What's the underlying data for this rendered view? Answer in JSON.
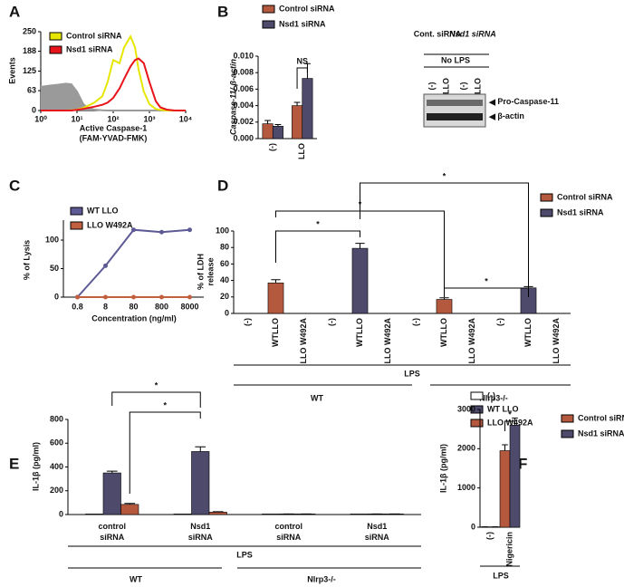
{
  "chart_data": [
    {
      "label": "A",
      "type": "line",
      "xlabel": [
        "Active Caspase-1",
        "(FAM-YVAD-FMK)"
      ],
      "ylabel": "Events",
      "x": [
        1,
        2,
        3,
        5,
        7,
        10,
        15,
        20,
        30,
        50,
        70,
        100,
        150,
        200,
        300,
        400,
        500,
        700,
        1000,
        1500,
        2000,
        3000,
        5000,
        10000
      ],
      "xscale": "log",
      "xlim": [
        1,
        10000
      ],
      "xticks": [
        {
          "value": 1,
          "label": "10⁰"
        },
        {
          "value": 10,
          "label": "10¹"
        },
        {
          "value": 100,
          "label": "10²"
        },
        {
          "value": 1000,
          "label": "10³"
        },
        {
          "value": 10000,
          "label": "10⁴"
        }
      ],
      "ylim": [
        0,
        250
      ],
      "yticks": [
        0,
        63,
        125,
        188,
        250
      ],
      "series": [
        {
          "color": "#9a9a9a",
          "area": true,
          "values": [
            75,
            80,
            82,
            85,
            83,
            60,
            20,
            8,
            3,
            1,
            0,
            0,
            0,
            0,
            0,
            0,
            0,
            0,
            0,
            0,
            0,
            0,
            0,
            0
          ]
        },
        {
          "name": "Control siRNA",
          "color": "#e6e600",
          "values": [
            0,
            0,
            0,
            0,
            1,
            3,
            8,
            15,
            25,
            45,
            90,
            160,
            150,
            200,
            235,
            200,
            130,
            60,
            20,
            5,
            2,
            0,
            0,
            0
          ]
        },
        {
          "name": "Nsd1 siRNA",
          "color": "#e8141c",
          "values": [
            0,
            0,
            0,
            0,
            0,
            2,
            5,
            8,
            12,
            18,
            25,
            40,
            70,
            100,
            140,
            160,
            165,
            150,
            90,
            30,
            10,
            3,
            0,
            0
          ]
        }
      ]
    },
    {
      "label": "B",
      "type": "bar",
      "ylabel": "Caspase-11/ β-actin",
      "categories": [
        "(-)",
        "LLO"
      ],
      "ylim": [
        0,
        0.01
      ],
      "yticks": [
        {
          "value": 0,
          "label": "0.000"
        },
        {
          "value": 0.002,
          "label": "0.002"
        },
        {
          "value": 0.004,
          "label": "0.004"
        },
        {
          "value": 0.006,
          "label": "0.006"
        },
        {
          "value": 0.008,
          "label": "0.008"
        },
        {
          "value": 0.01,
          "label": "0.010"
        }
      ],
      "series": [
        {
          "name": "Control siRNA",
          "color": "#b5593e",
          "values": [
            0.0018,
            0.004
          ],
          "errors": [
            0.0004,
            0.0004
          ]
        },
        {
          "name": "Nsd1 siRNA",
          "color": "#4d4a6b",
          "values": [
            0.0015,
            0.0073
          ],
          "errors": [
            0.0002,
            0.0018
          ]
        }
      ],
      "annotations": [
        "NS"
      ],
      "blot": {
        "groups": [
          "Cont. siRNA",
          "Nsd1 siRNA"
        ],
        "condition": "No LPS",
        "lanes": [
          "(-)",
          "LLO",
          "(-)",
          "LLO"
        ],
        "bands": [
          "Pro-Caspase-11",
          "β-actin"
        ]
      }
    },
    {
      "label": "C",
      "type": "line",
      "xlabel": "Concentration (ng/ml)",
      "ylabel": "% of Lysis",
      "categories": [
        "0.8",
        "8",
        "80",
        "800",
        "8000"
      ],
      "ylim": [
        0,
        135
      ],
      "yticks": [
        0,
        50,
        100
      ],
      "series": [
        {
          "name": "WT LLO",
          "color": "#5e5a96",
          "values": [
            0,
            55,
            118,
            114,
            118
          ]
        },
        {
          "name": "LLO W492A",
          "color": "#c0603f",
          "values": [
            0,
            0,
            0,
            0,
            0
          ]
        }
      ]
    },
    {
      "label": "D",
      "type": "bar",
      "ylabel": [
        "% of LDH",
        "release"
      ],
      "categories": [
        "(-)",
        "WTLLO",
        "LLO W492A",
        "(-)",
        "WTLLO",
        "LLO W492A",
        "(-)",
        "WTLLO",
        "LLO W492A",
        "(-)",
        "WTLLO",
        "LLO W492A"
      ],
      "ylim": [
        0,
        100
      ],
      "yticks": [
        0,
        20,
        40,
        60,
        80,
        100
      ],
      "series": [
        {
          "name": "Control siRNA",
          "color": "#b5593e",
          "values": [
            0,
            37,
            0,
            null,
            null,
            null,
            0,
            17,
            0,
            null,
            null,
            null
          ],
          "errors": [
            0,
            4,
            0,
            null,
            null,
            null,
            0,
            2,
            0,
            null,
            null,
            null
          ]
        },
        {
          "name": "Nsd1 siRNA",
          "color": "#4d4a6b",
          "values": [
            null,
            null,
            null,
            0,
            79,
            0,
            null,
            null,
            null,
            0,
            31,
            0
          ],
          "errors": [
            null,
            null,
            null,
            0,
            6,
            0,
            null,
            null,
            null,
            0,
            1.5,
            0
          ]
        }
      ],
      "groups": [
        "LPS",
        "WT",
        "Nlrp3-/-"
      ],
      "annotations": [
        "*",
        "*",
        "*",
        "*"
      ]
    },
    {
      "label": "E",
      "type": "bar",
      "ylabel": "IL-1β (pg/ml)",
      "categories": [
        "control siRNA",
        "Nsd1 siRNA",
        "control siRNA",
        "Nsd1 siRNA"
      ],
      "ylim": [
        0,
        800
      ],
      "yticks": [
        0,
        200,
        400,
        600,
        800
      ],
      "series": [
        {
          "name": "(-)",
          "color": "#ffffff",
          "values": [
            5,
            5,
            5,
            5
          ]
        },
        {
          "name": "WT LLO",
          "color": "#4d4a6b",
          "values": [
            350,
            530,
            5,
            5
          ],
          "errors": [
            15,
            40,
            0,
            0
          ]
        },
        {
          "name": "LLO W492A",
          "color": "#b5593e",
          "values": [
            85,
            20,
            5,
            5
          ],
          "errors": [
            8,
            4,
            0,
            0
          ]
        }
      ],
      "groups": [
        "LPS",
        "WT",
        "Nlrp3-/-"
      ],
      "annotations": [
        "*",
        "*"
      ]
    },
    {
      "label": "F",
      "type": "bar",
      "ylabel": "IL-1β (pg/ml)",
      "categories": [
        "(-)",
        "Nigericin"
      ],
      "ylim": [
        0,
        3000
      ],
      "yticks": [
        0,
        1000,
        2000,
        3000
      ],
      "series": [
        {
          "name": "Control siRNA",
          "color": "#b5593e",
          "values": [
            10,
            1950
          ],
          "errors": [
            0,
            150
          ]
        },
        {
          "name": "Nsd1 siRNA",
          "color": "#4d4a6b",
          "values": [
            10,
            2600
          ],
          "errors": [
            0,
            180
          ]
        }
      ],
      "groups": [
        "LPS"
      ],
      "annotations": [
        "*"
      ]
    }
  ]
}
